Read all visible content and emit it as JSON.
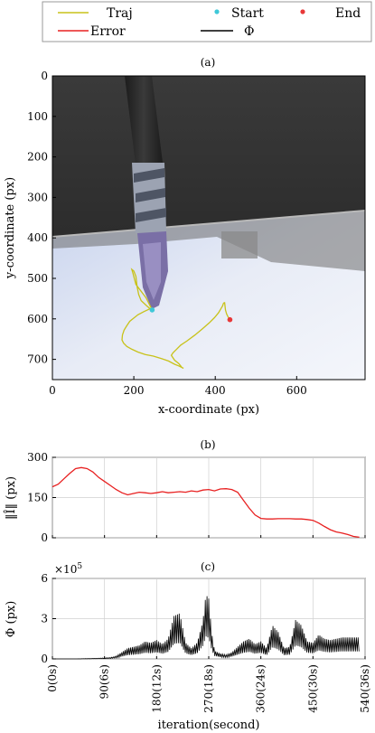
{
  "legend": {
    "items": [
      {
        "label": "Traj",
        "color": "#c8c21a",
        "kind": "line"
      },
      {
        "label": "Start",
        "color": "#3fc8d8",
        "kind": "dot"
      },
      {
        "label": "End",
        "color": "#e83838",
        "kind": "dot"
      },
      {
        "label": "Error",
        "color": "#e82020",
        "kind": "line"
      },
      {
        "label": "Φ",
        "color": "#000000",
        "kind": "line"
      }
    ]
  },
  "chart_data": [
    {
      "id": "a",
      "caption": "(a)",
      "type": "scatter",
      "xlabel": "x-coordinate (px)",
      "ylabel": "y-coordinate (px)",
      "xlim": [
        0,
        768
      ],
      "ylim": [
        750,
        0
      ],
      "xticks": [
        0,
        200,
        400,
        600
      ],
      "yticks": [
        0,
        100,
        200,
        300,
        400,
        500,
        600,
        700
      ],
      "grid": false,
      "series": [
        {
          "name": "Traj",
          "color": "#c8c21a",
          "x": [
            245,
            230,
            205,
            198,
            195,
            200,
            205,
            208,
            212,
            218,
            232,
            240,
            225,
            210,
            200,
            190,
            182,
            176,
            172,
            171,
            175,
            183,
            195,
            210,
            228,
            248,
            268,
            285,
            300,
            310,
            318,
            322,
            318,
            315,
            310,
            300,
            292,
            296,
            305,
            315,
            330,
            350,
            368,
            385,
            398,
            408,
            414,
            418,
            420,
            422,
            423,
            424,
            425,
            428,
            432,
            436,
            438
          ],
          "y": [
            578,
            548,
            515,
            488,
            478,
            482,
            495,
            520,
            540,
            555,
            568,
            575,
            582,
            590,
            598,
            606,
            618,
            628,
            640,
            652,
            660,
            668,
            675,
            682,
            688,
            692,
            698,
            704,
            712,
            716,
            720,
            722,
            720,
            716,
            710,
            702,
            690,
            684,
            675,
            665,
            655,
            640,
            625,
            610,
            597,
            585,
            575,
            568,
            562,
            560,
            560,
            568,
            578,
            588,
            596,
            600,
            602
          ]
        },
        {
          "name": "Start",
          "color": "#3fc8d8",
          "x": [
            245
          ],
          "y": [
            578
          ]
        },
        {
          "name": "End",
          "color": "#e83838",
          "x": [
            436
          ],
          "y": [
            602
          ]
        }
      ]
    },
    {
      "id": "b",
      "caption": "(b)",
      "type": "line",
      "ylabel": "‖Î‖ (px)",
      "xlim": [
        0,
        540
      ],
      "ylim": [
        0,
        300
      ],
      "yticks": [
        0,
        150,
        300
      ],
      "grid": true,
      "series": [
        {
          "name": "Error",
          "color": "#e82020",
          "x": [
            0,
            10,
            20,
            30,
            40,
            50,
            60,
            70,
            80,
            90,
            100,
            110,
            120,
            130,
            140,
            150,
            160,
            170,
            180,
            190,
            200,
            210,
            220,
            230,
            240,
            250,
            260,
            270,
            280,
            290,
            300,
            310,
            320,
            330,
            340,
            350,
            360,
            370,
            380,
            390,
            400,
            410,
            420,
            430,
            440,
            450,
            460,
            470,
            480,
            490,
            500,
            510,
            520,
            530
          ],
          "y": [
            190,
            200,
            220,
            240,
            258,
            262,
            258,
            245,
            225,
            210,
            195,
            180,
            168,
            160,
            165,
            170,
            168,
            165,
            168,
            172,
            168,
            170,
            172,
            170,
            175,
            172,
            178,
            180,
            175,
            182,
            183,
            180,
            170,
            140,
            110,
            85,
            72,
            70,
            70,
            71,
            71,
            71,
            70,
            70,
            68,
            65,
            55,
            42,
            30,
            22,
            18,
            12,
            5,
            2
          ]
        }
      ]
    },
    {
      "id": "c",
      "caption": "(c)",
      "type": "line",
      "ylabel": "Φ (px)",
      "exponent_label": "×10",
      "exponent_power": "5",
      "xlabel": "iteration(second)",
      "xlim": [
        0,
        540
      ],
      "ylim": [
        0,
        6
      ],
      "yticks": [
        0,
        3,
        6
      ],
      "xticks": [
        0,
        90,
        180,
        270,
        360,
        450,
        540
      ],
      "xticklabels": [
        "0(0s)",
        "90(6s)",
        "180(12s)",
        "270(18s)",
        "360(24s)",
        "450(30s)",
        "540(36s)"
      ],
      "grid": true,
      "series": [
        {
          "name": "Φ",
          "color": "#000000",
          "x": [
            0,
            20,
            40,
            60,
            80,
            100,
            110,
            120,
            130,
            140,
            150,
            160,
            170,
            180,
            190,
            200,
            210,
            220,
            230,
            240,
            250,
            260,
            265,
            270,
            275,
            280,
            290,
            300,
            310,
            320,
            330,
            340,
            350,
            360,
            370,
            380,
            390,
            400,
            410,
            420,
            430,
            440,
            450,
            460,
            470,
            480,
            490,
            500,
            510,
            520,
            530
          ],
          "y": [
            0,
            0,
            0,
            0.02,
            0.05,
            0.1,
            0.2,
            0.5,
            0.8,
            0.9,
            1.0,
            1.3,
            1.2,
            1.4,
            1.1,
            1.5,
            3.2,
            3.4,
            1.2,
            0.8,
            1.2,
            2.8,
            4.8,
            4.5,
            2.0,
            0.6,
            0.4,
            0.3,
            0.5,
            0.9,
            1.3,
            1.5,
            1.1,
            1.3,
            0.8,
            2.5,
            2.0,
            0.8,
            0.9,
            2.9,
            2.5,
            1.3,
            1.2,
            1.8,
            1.5,
            1.4,
            1.5,
            1.6,
            1.6,
            1.6,
            1.6
          ]
        }
      ]
    }
  ]
}
